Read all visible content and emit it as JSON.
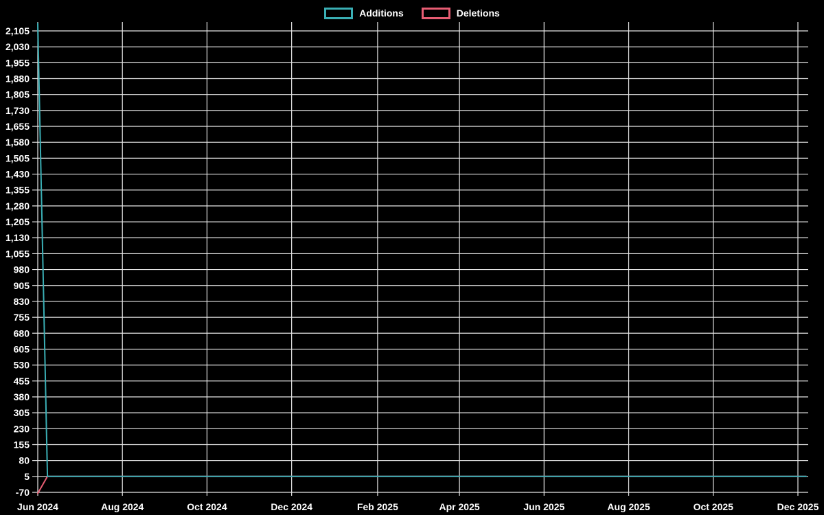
{
  "app": {
    "background": "#000000",
    "text_color": "#ffffff"
  },
  "legend": {
    "items": [
      {
        "label": "Additions",
        "color": "#3aafb5"
      },
      {
        "label": "Deletions",
        "color": "#e85d73"
      }
    ]
  },
  "chart_data": {
    "type": "line",
    "title": "",
    "xlabel": "",
    "ylabel": "",
    "legend_position": "top-center",
    "grid": {
      "color": "#e8e8e8",
      "horizontal": true,
      "vertical": true
    },
    "x_axis": {
      "kind": "time",
      "range": [
        "2024-06-01",
        "2025-12-01"
      ],
      "ticks": [
        {
          "label": "Jun 2024",
          "days": 0
        },
        {
          "label": "Aug 2024",
          "days": 61
        },
        {
          "label": "Oct 2024",
          "days": 122
        },
        {
          "label": "Dec 2024",
          "days": 183
        },
        {
          "label": "Feb 2025",
          "days": 245
        },
        {
          "label": "Apr 2025",
          "days": 304
        },
        {
          "label": "Jun 2025",
          "days": 365
        },
        {
          "label": "Aug 2025",
          "days": 426
        },
        {
          "label": "Oct 2025",
          "days": 487
        },
        {
          "label": "Dec 2025",
          "days": 548
        }
      ]
    },
    "y_axis": {
      "min": -70,
      "max": 2105,
      "step": 75,
      "ticks": [
        {
          "label": "2,105",
          "value": 2105
        },
        {
          "label": "2,030",
          "value": 2030
        },
        {
          "label": "1,955",
          "value": 1955
        },
        {
          "label": "1,880",
          "value": 1880
        },
        {
          "label": "1,805",
          "value": 1805
        },
        {
          "label": "1,730",
          "value": 1730
        },
        {
          "label": "1,655",
          "value": 1655
        },
        {
          "label": "1,580",
          "value": 1580
        },
        {
          "label": "1,505",
          "value": 1505
        },
        {
          "label": "1,430",
          "value": 1430
        },
        {
          "label": "1,355",
          "value": 1355
        },
        {
          "label": "1,280",
          "value": 1280
        },
        {
          "label": "1,205",
          "value": 1205
        },
        {
          "label": "1,130",
          "value": 1130
        },
        {
          "label": "1,055",
          "value": 1055
        },
        {
          "label": "980",
          "value": 980
        },
        {
          "label": "905",
          "value": 905
        },
        {
          "label": "830",
          "value": 830
        },
        {
          "label": "755",
          "value": 755
        },
        {
          "label": "680",
          "value": 680
        },
        {
          "label": "605",
          "value": 605
        },
        {
          "label": "530",
          "value": 530
        },
        {
          "label": "455",
          "value": 455
        },
        {
          "label": "380",
          "value": 380
        },
        {
          "label": "305",
          "value": 305
        },
        {
          "label": "230",
          "value": 230
        },
        {
          "label": "155",
          "value": 155
        },
        {
          "label": "80",
          "value": 80
        },
        {
          "label": "5",
          "value": 5
        },
        {
          "label": "-70",
          "value": -70
        }
      ]
    },
    "series": [
      {
        "name": "Additions",
        "color": "#3aafb5",
        "points": [
          {
            "date": "2024-06-01",
            "days": 0,
            "value": 2140
          },
          {
            "date": "2024-06-08",
            "days": 7,
            "value": 5
          },
          {
            "date": "2025-12-07",
            "days": 554,
            "value": 5
          }
        ]
      },
      {
        "name": "Deletions",
        "color": "#e85d73",
        "points": [
          {
            "date": "2024-06-01",
            "days": 0,
            "value": -75
          },
          {
            "date": "2024-06-08",
            "days": 7,
            "value": 5
          },
          {
            "date": "2025-12-07",
            "days": 554,
            "value": 5
          }
        ]
      }
    ]
  }
}
